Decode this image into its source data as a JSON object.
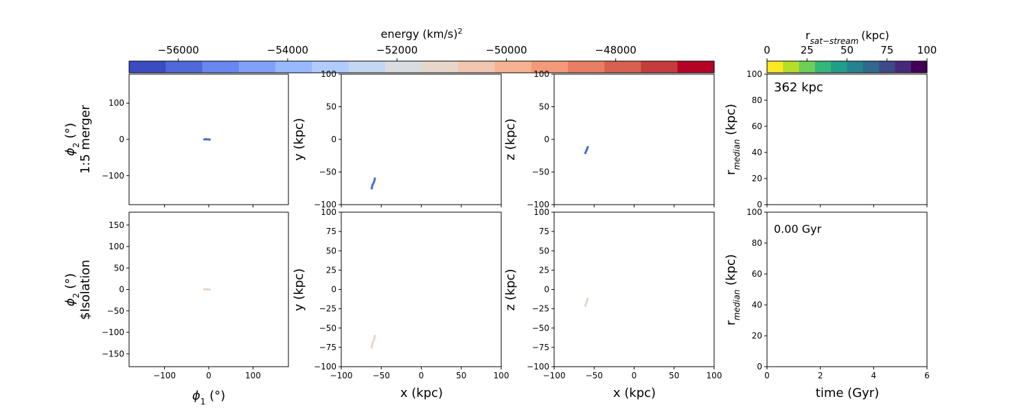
{
  "colorbar_energy": {
    "label": "energy (km/s)",
    "label_sup": "2",
    "ticks": [
      -56000,
      -54000,
      -52000,
      -50000,
      -48000
    ],
    "tick_labels": [
      "−56000",
      "−54000",
      "−52000",
      "−50000",
      "−48000"
    ],
    "range": [
      -56900,
      -46200
    ],
    "cmap": "coolwarm",
    "colors": [
      "#3b4cc0",
      "#4f69d9",
      "#6788ee",
      "#7fa1f7",
      "#98b9ff",
      "#b0cbfc",
      "#c5d6f2",
      "#d9dce1",
      "#e8d6cb",
      "#f2c6b0",
      "#f6b293",
      "#f39a7a",
      "#e87f64",
      "#d8604e",
      "#c43c3c",
      "#b40426"
    ]
  },
  "colorbar_dist": {
    "label_main": "r",
    "label_sub": "sat−stream",
    "label_unit": "(kpc)",
    "ticks": [
      0,
      25,
      50,
      75,
      100
    ],
    "tick_labels": [
      "0",
      "25",
      "50",
      "75",
      "100"
    ],
    "range": [
      0,
      100
    ],
    "cmap": "viridis_r",
    "colors": [
      "#fde725",
      "#b5de2b",
      "#6ece58",
      "#35b779",
      "#1f9e89",
      "#26828e",
      "#31688e",
      "#3e4989",
      "#482878",
      "#440154"
    ]
  },
  "rows": [
    {
      "ylabel_extra": "1:5 merger",
      "sky_yticks": [
        "100",
        "0",
        "−100"
      ],
      "annotation": "362 kpc"
    },
    {
      "ylabel_extra": "$Isolation",
      "sky_yticks": [
        "150",
        "100",
        "50",
        "0",
        "−50",
        "−100",
        "−150"
      ],
      "annotation": "0.00 Gyr"
    }
  ],
  "labels": {
    "phi1": "ϕ",
    "phi1_sub": "1",
    "phi1_unit": " (°)",
    "phi2": "ϕ",
    "phi2_sub": "2",
    "phi2_unit": " (°)",
    "x": "x (kpc)",
    "y": "y (kpc)",
    "z": "z (kpc)",
    "rmed_main": "r",
    "rmed_sub": "median",
    "rmed_unit": " (kpc)",
    "time": "time (Gyr)"
  },
  "axes": {
    "phi1_xticks": [
      "−100",
      "0",
      "100"
    ],
    "phi1_xlim": [
      -180,
      180
    ],
    "phi2_ylim": [
      -180,
      180
    ],
    "pos_lim": [
      -100,
      100
    ],
    "pos_ticks": [
      "100",
      "75",
      "50",
      "25",
      "0",
      "−25",
      "−50",
      "−75",
      "−100"
    ],
    "pos_ticks_top": [
      "100",
      "50",
      "0",
      "−50",
      "−100"
    ],
    "pos_xticks": [
      "−100",
      "−50",
      "0",
      "50",
      "100"
    ],
    "rmed_ylim": [
      0,
      100
    ],
    "rmed_yticks": [
      "100",
      "80",
      "60",
      "40",
      "20",
      "0"
    ],
    "time_xlim": [
      0,
      6
    ],
    "time_xticks": [
      "0",
      "2",
      "4",
      "6"
    ]
  },
  "chart_data": [
    {
      "type": "scatter",
      "panel": "row1-sky",
      "x": [
        -10,
        -6,
        -2,
        2
      ],
      "y": [
        0,
        0.5,
        0,
        -0.5
      ],
      "energy_color": "#4f69d9",
      "xlim": [
        -180,
        180
      ],
      "ylim": [
        -180,
        180
      ]
    },
    {
      "type": "scatter",
      "panel": "row1-xy",
      "x": [
        -62,
        -61,
        -59,
        -58
      ],
      "y": [
        -75,
        -70,
        -65,
        -60
      ],
      "energy_color": "#4f69d9",
      "xlim": [
        -100,
        100
      ],
      "ylim": [
        -100,
        100
      ]
    },
    {
      "type": "scatter",
      "panel": "row1-xz",
      "x": [
        -61,
        -60,
        -59,
        -58
      ],
      "y": [
        -21,
        -18,
        -15,
        -12
      ],
      "energy_color": "#4f69d9",
      "xlim": [
        -100,
        100
      ],
      "ylim": [
        -100,
        100
      ]
    },
    {
      "type": "line",
      "panel": "row1-rmedian",
      "x": [],
      "y": [],
      "xlim": [
        0,
        6
      ],
      "ylim": [
        0,
        100
      ]
    },
    {
      "type": "scatter",
      "panel": "row2-sky",
      "x": [
        -10,
        -6,
        -2,
        2
      ],
      "y": [
        0,
        0.5,
        0,
        -0.5
      ],
      "energy_color": "#e8d6cb",
      "xlim": [
        -180,
        180
      ],
      "ylim": [
        -180,
        180
      ]
    },
    {
      "type": "scatter",
      "panel": "row2-xy",
      "x": [
        -62,
        -61,
        -59,
        -58
      ],
      "y": [
        -75,
        -70,
        -65,
        -60
      ],
      "energy_color": "#e8d6cb",
      "xlim": [
        -100,
        100
      ],
      "ylim": [
        -100,
        100
      ]
    },
    {
      "type": "scatter",
      "panel": "row2-xz",
      "x": [
        -61,
        -60,
        -59,
        -58
      ],
      "y": [
        -21,
        -18,
        -15,
        -12
      ],
      "energy_color": "#e8d6cb",
      "xlim": [
        -100,
        100
      ],
      "ylim": [
        -100,
        100
      ]
    },
    {
      "type": "line",
      "panel": "row2-rmedian",
      "x": [],
      "y": [],
      "xlim": [
        0,
        6
      ],
      "ylim": [
        0,
        100
      ]
    }
  ]
}
